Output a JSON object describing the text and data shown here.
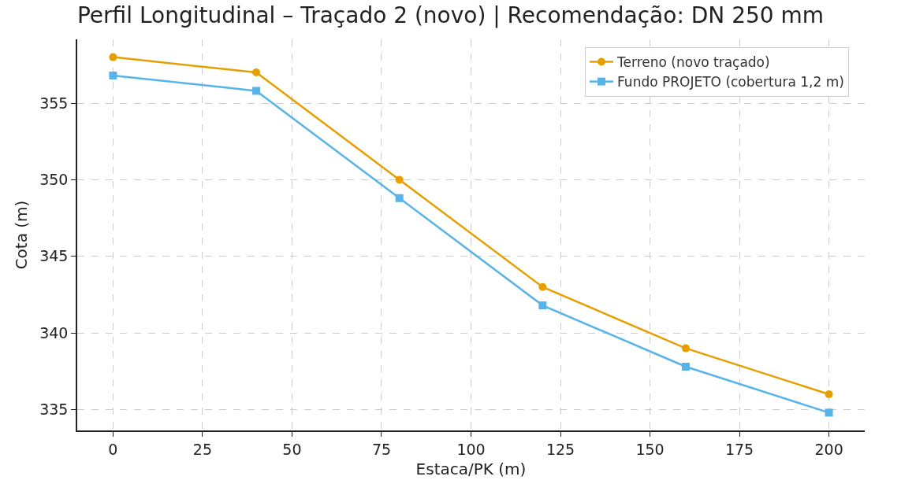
{
  "chart_data": {
    "type": "line",
    "title": "Perfil Longitudinal – Traçado 2 (novo) | Recomendação: DN 250 mm",
    "xlabel": "Estaca/PK (m)",
    "ylabel": "Cota (m)",
    "x": [
      0,
      40,
      80,
      120,
      160,
      200
    ],
    "series": [
      {
        "name": "Terreno (novo traçado)",
        "color": "#e69f00",
        "marker": "circle",
        "values": [
          358,
          357,
          350,
          343,
          339,
          336
        ]
      },
      {
        "name": "Fundo PROJETO (cobertura 1,2 m)",
        "color": "#56b4e9",
        "marker": "square",
        "values": [
          356.8,
          355.8,
          348.8,
          341.8,
          337.8,
          334.8
        ]
      }
    ],
    "xlim": [
      -10,
      210
    ],
    "xticks": [
      0,
      25,
      50,
      75,
      100,
      125,
      150,
      175,
      200
    ],
    "ylim": [
      333.64,
      359.16
    ],
    "yticks": [
      335,
      340,
      345,
      350,
      355
    ],
    "grid": true,
    "legend": "top right",
    "line_style": "solid"
  }
}
